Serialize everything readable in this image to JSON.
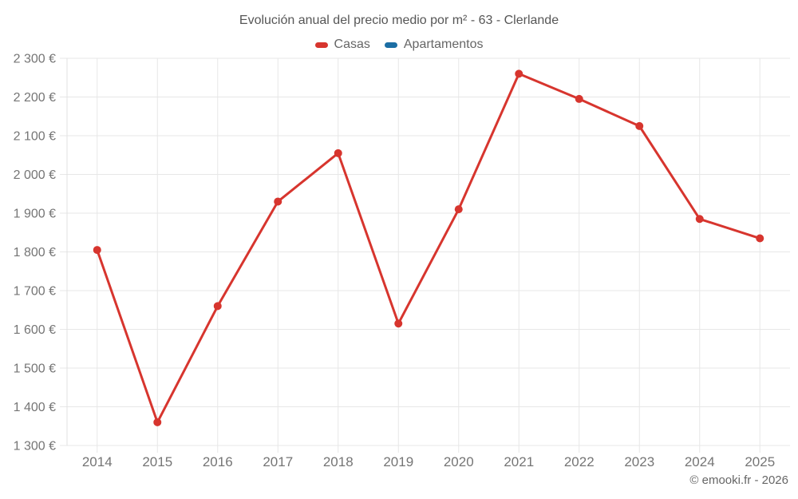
{
  "title": "Evolución anual del precio medio por m² - 63 - Clerlande",
  "footer": {
    "credit": "© emooki.fr - 2026"
  },
  "chart_data": {
    "type": "line",
    "title": "Evolución anual del precio medio por m² - 63 - Clerlande",
    "x": [
      2014,
      2015,
      2016,
      2017,
      2018,
      2019,
      2020,
      2021,
      2022,
      2023,
      2024,
      2025
    ],
    "series": [
      {
        "name": "Casas",
        "color": "#d7352e",
        "values": [
          1805,
          1360,
          1660,
          1930,
          2055,
          1615,
          1910,
          2260,
          2195,
          2125,
          1885,
          1835
        ]
      },
      {
        "name": "Apartamentos",
        "color": "#1c6ea4",
        "values": []
      }
    ],
    "xlabel": "",
    "ylabel": "",
    "ylim": [
      1300,
      2300
    ],
    "y_tick_step": 100,
    "y_tick_suffix": " €",
    "grid": true,
    "legend_position": "top",
    "colors": {
      "grid": "#e7e7e7",
      "axis_border": "#e0e0e0",
      "tick_label": "#757575",
      "title_text": "#565656",
      "legend_text": "#666666"
    }
  }
}
